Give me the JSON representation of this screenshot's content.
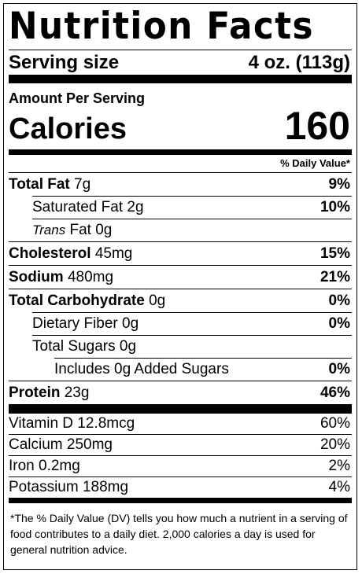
{
  "title": "Nutrition Facts",
  "serving": {
    "label": "Serving size",
    "value": "4 oz. (113g)"
  },
  "amount_per_serving": "Amount Per Serving",
  "calories": {
    "label": "Calories",
    "value": "160"
  },
  "dv_header": "% Daily Value*",
  "nutrients": [
    {
      "name": "Total Fat",
      "amount": "7g",
      "dv": "9%"
    },
    {
      "name": "Saturated Fat",
      "amount": "2g",
      "dv": "10%"
    },
    {
      "name_italic": "Trans",
      "name": "Fat",
      "amount": "0g",
      "dv": ""
    },
    {
      "name": "Cholesterol",
      "amount": "45mg",
      "dv": "15%"
    },
    {
      "name": "Sodium",
      "amount": "480mg",
      "dv": "21%"
    },
    {
      "name": "Total Carbohydrate",
      "amount": "0g",
      "dv": "0%"
    },
    {
      "name": "Dietary Fiber",
      "amount": "0g",
      "dv": "0%"
    },
    {
      "name": "Total Sugars",
      "amount": "0g",
      "dv": ""
    },
    {
      "name": "Includes 0g Added Sugars",
      "amount": "",
      "dv": "0%"
    },
    {
      "name": "Protein",
      "amount": "23g",
      "dv": "46%"
    }
  ],
  "vitamins": [
    {
      "text": "Vitamin D 12.8mcg",
      "dv": "60%"
    },
    {
      "text": "Calcium 250mg",
      "dv": "20%"
    },
    {
      "text": "Iron 0.2mg",
      "dv": "2%"
    },
    {
      "text": "Potassium 188mg",
      "dv": "4%"
    }
  ],
  "footnote": "*The % Daily Value (DV) tells you how much a nutrient in a serving of food contributes to a daily diet. 2,000 calories a day is used for general nutrition advice."
}
